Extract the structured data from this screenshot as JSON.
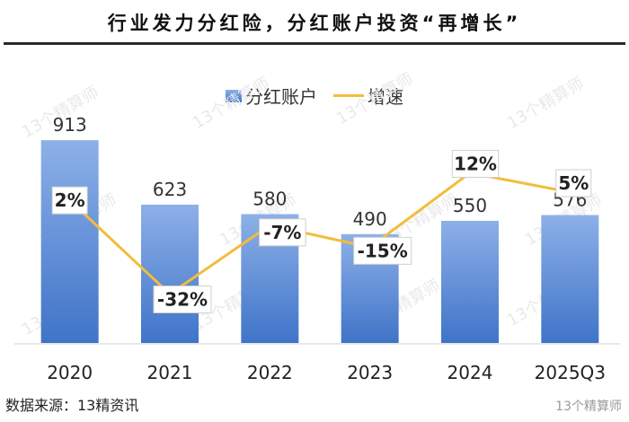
{
  "title": "行业发力分红险，分红账户投资“再增长”",
  "legend": {
    "bars": "分红账户",
    "line": "增速"
  },
  "source": "数据来源：13精资讯",
  "watermark": "13个精算师",
  "colors": {
    "bar_top": "#8db0e8",
    "bar_bottom": "#3f74c8",
    "line": "#f2bd3c"
  },
  "chart_data": {
    "type": "bar",
    "categories": [
      "2020",
      "2021",
      "2022",
      "2023",
      "2024",
      "2025Q3"
    ],
    "series": [
      {
        "name": "分红账户",
        "type": "bar",
        "values": [
          913,
          623,
          580,
          490,
          550,
          576
        ]
      },
      {
        "name": "增速",
        "type": "line",
        "values": [
          2,
          -32,
          -7,
          -15,
          12,
          5
        ],
        "labels": [
          "2%",
          "-32%",
          "-7%",
          "-15%",
          "12%",
          "5%"
        ]
      }
    ],
    "bar_ylim": [
      0,
      950
    ],
    "line_ylim": [
      -40,
      20
    ],
    "legend_position": "top-center",
    "grid": false
  }
}
